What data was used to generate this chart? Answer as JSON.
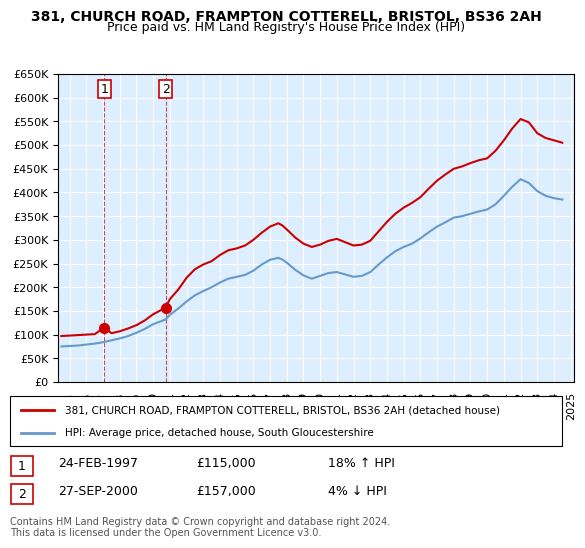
{
  "title1": "381, CHURCH ROAD, FRAMPTON COTTERELL, BRISTOL, BS36 2AH",
  "title2": "Price paid vs. HM Land Registry's House Price Index (HPI)",
  "legend_line1": "381, CHURCH ROAD, FRAMPTON COTTERELL, BRISTOL, BS36 2AH (detached house)",
  "legend_line2": "HPI: Average price, detached house, South Gloucestershire",
  "annotation1_box": "1",
  "annotation1_date": "24-FEB-1997",
  "annotation1_price": "£115,000",
  "annotation1_hpi": "18% ↑ HPI",
  "annotation2_box": "2",
  "annotation2_date": "27-SEP-2000",
  "annotation2_price": "£157,000",
  "annotation2_hpi": "4% ↓ HPI",
  "footnote": "Contains HM Land Registry data © Crown copyright and database right 2024.\nThis data is licensed under the Open Government Licence v3.0.",
  "sale_color": "#cc0000",
  "hpi_color": "#6699cc",
  "background_plot": "#ddeeff",
  "grid_color": "#ffffff",
  "ylim": [
    0,
    650000
  ],
  "yticks": [
    0,
    50000,
    100000,
    150000,
    200000,
    250000,
    300000,
    350000,
    400000,
    450000,
    500000,
    550000,
    600000,
    650000
  ],
  "sale_dates": [
    1994.5,
    1995.0,
    1995.5,
    1996.0,
    1996.5,
    1997.08,
    1997.5,
    1998.0,
    1998.5,
    1999.0,
    1999.5,
    2000.0,
    2000.75,
    2001.0,
    2001.5,
    2002.0,
    2002.5,
    2003.0,
    2003.5,
    2004.0,
    2004.5,
    2005.0,
    2005.5,
    2006.0,
    2006.5,
    2007.0,
    2007.5,
    2007.75,
    2008.0,
    2008.5,
    2009.0,
    2009.5,
    2010.0,
    2010.5,
    2011.0,
    2011.5,
    2012.0,
    2012.5,
    2013.0,
    2013.5,
    2014.0,
    2014.5,
    2015.0,
    2015.5,
    2016.0,
    2016.5,
    2017.0,
    2017.5,
    2018.0,
    2018.5,
    2019.0,
    2019.5,
    2020.0,
    2020.5,
    2021.0,
    2021.5,
    2022.0,
    2022.5,
    2023.0,
    2023.5,
    2024.0,
    2024.5
  ],
  "sale_values": [
    97000,
    98000,
    99000,
    100000,
    101000,
    115000,
    103000,
    107000,
    113000,
    120000,
    130000,
    143000,
    157000,
    175000,
    195000,
    220000,
    238000,
    248000,
    255000,
    268000,
    278000,
    282000,
    288000,
    300000,
    315000,
    328000,
    335000,
    330000,
    322000,
    305000,
    292000,
    285000,
    290000,
    298000,
    302000,
    295000,
    288000,
    290000,
    298000,
    318000,
    338000,
    355000,
    368000,
    378000,
    390000,
    408000,
    425000,
    438000,
    450000,
    455000,
    462000,
    468000,
    472000,
    488000,
    510000,
    535000,
    555000,
    548000,
    525000,
    515000,
    510000,
    505000
  ],
  "hpi_dates": [
    1994.5,
    1995.0,
    1995.5,
    1996.0,
    1996.5,
    1997.0,
    1997.5,
    1998.0,
    1998.5,
    1999.0,
    1999.5,
    2000.0,
    2000.75,
    2001.0,
    2001.5,
    2002.0,
    2002.5,
    2003.0,
    2003.5,
    2004.0,
    2004.5,
    2005.0,
    2005.5,
    2006.0,
    2006.5,
    2007.0,
    2007.5,
    2007.75,
    2008.0,
    2008.5,
    2009.0,
    2009.5,
    2010.0,
    2010.5,
    2011.0,
    2011.5,
    2012.0,
    2012.5,
    2013.0,
    2013.5,
    2014.0,
    2014.5,
    2015.0,
    2015.5,
    2016.0,
    2016.5,
    2017.0,
    2017.5,
    2018.0,
    2018.5,
    2019.0,
    2019.5,
    2020.0,
    2020.5,
    2021.0,
    2021.5,
    2022.0,
    2022.5,
    2023.0,
    2023.5,
    2024.0,
    2024.5
  ],
  "hpi_values": [
    75000,
    76000,
    77000,
    79000,
    81000,
    84000,
    88000,
    92000,
    97000,
    104000,
    112000,
    122000,
    132000,
    142000,
    155000,
    170000,
    183000,
    192000,
    200000,
    210000,
    218000,
    222000,
    226000,
    235000,
    248000,
    258000,
    262000,
    258000,
    252000,
    237000,
    225000,
    218000,
    224000,
    230000,
    232000,
    227000,
    222000,
    224000,
    232000,
    248000,
    263000,
    276000,
    285000,
    292000,
    303000,
    316000,
    328000,
    337000,
    347000,
    350000,
    355000,
    360000,
    364000,
    375000,
    393000,
    412000,
    428000,
    420000,
    403000,
    393000,
    388000,
    385000
  ],
  "sale_points": [
    {
      "date": 1997.08,
      "value": 115000,
      "label": "1"
    },
    {
      "date": 2000.75,
      "value": 157000,
      "label": "2"
    }
  ],
  "vline_dates": [
    1997.08,
    2000.75
  ],
  "xlim_start": 1994.3,
  "xlim_end": 2025.2,
  "xtick_years": [
    1995,
    1996,
    1997,
    1998,
    1999,
    2000,
    2001,
    2002,
    2003,
    2004,
    2005,
    2006,
    2007,
    2008,
    2009,
    2010,
    2011,
    2012,
    2013,
    2014,
    2015,
    2016,
    2017,
    2018,
    2019,
    2020,
    2021,
    2022,
    2023,
    2024,
    2025
  ]
}
